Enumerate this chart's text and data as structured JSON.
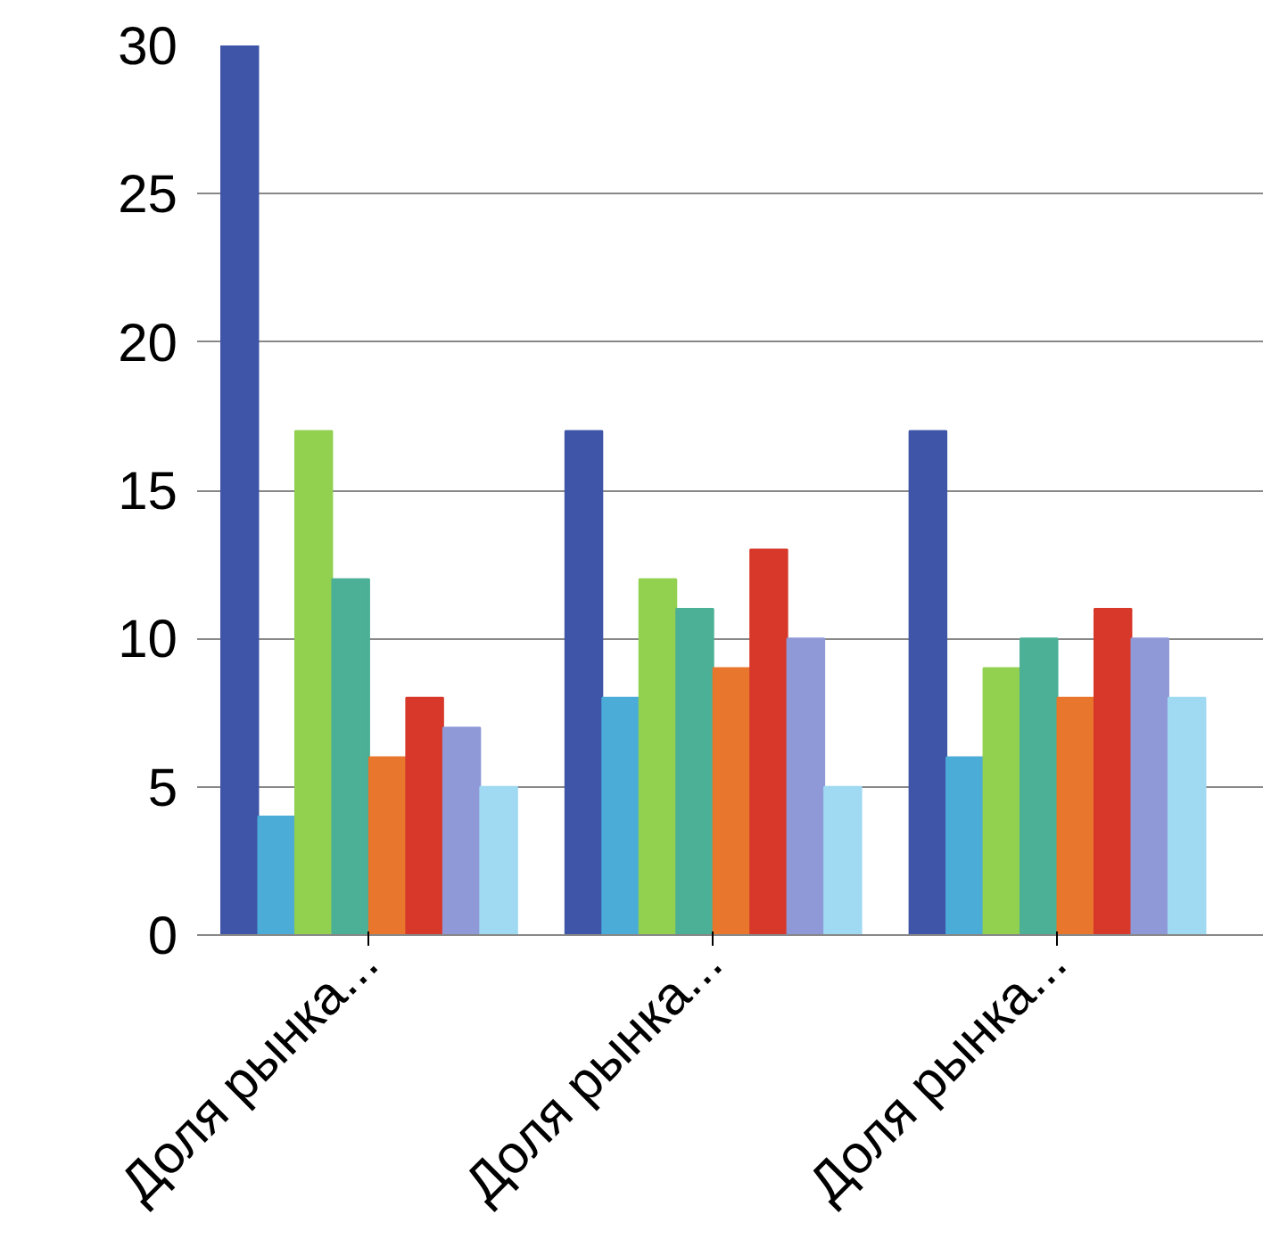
{
  "chart_data": {
    "type": "bar",
    "categories": [
      "Доля рынка...",
      "Доля рынка...",
      "Доля рынка..."
    ],
    "series": [
      {
        "color": "#3f55a8",
        "values": [
          30,
          17,
          17
        ]
      },
      {
        "color": "#4bacd8",
        "values": [
          4,
          8,
          6
        ]
      },
      {
        "color": "#92d050",
        "values": [
          17,
          12,
          9
        ]
      },
      {
        "color": "#4bb096",
        "values": [
          12,
          11,
          10
        ]
      },
      {
        "color": "#e8762c",
        "values": [
          6,
          9,
          8
        ]
      },
      {
        "color": "#d7382a",
        "values": [
          8,
          13,
          11
        ]
      },
      {
        "color": "#9099d8",
        "values": [
          7,
          10,
          10
        ]
      },
      {
        "color": "#9fd9f2",
        "values": [
          5,
          5,
          8
        ]
      }
    ],
    "ylim": [
      0,
      30
    ],
    "yticks": [
      0,
      5,
      10,
      15,
      20,
      25,
      30
    ],
    "grid": "y"
  }
}
